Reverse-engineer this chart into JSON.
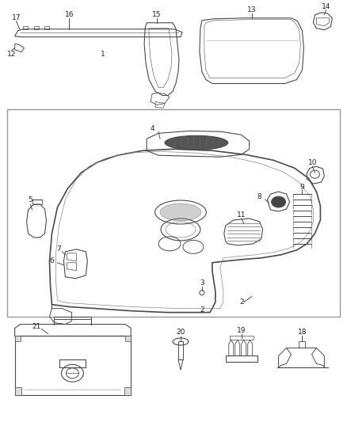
{
  "bg_color": "#ffffff",
  "line_color": "#4a4a4a",
  "label_color": "#222222",
  "label_fontsize": 6.5,
  "fig_width": 4.38,
  "fig_height": 5.33,
  "dpi": 100
}
